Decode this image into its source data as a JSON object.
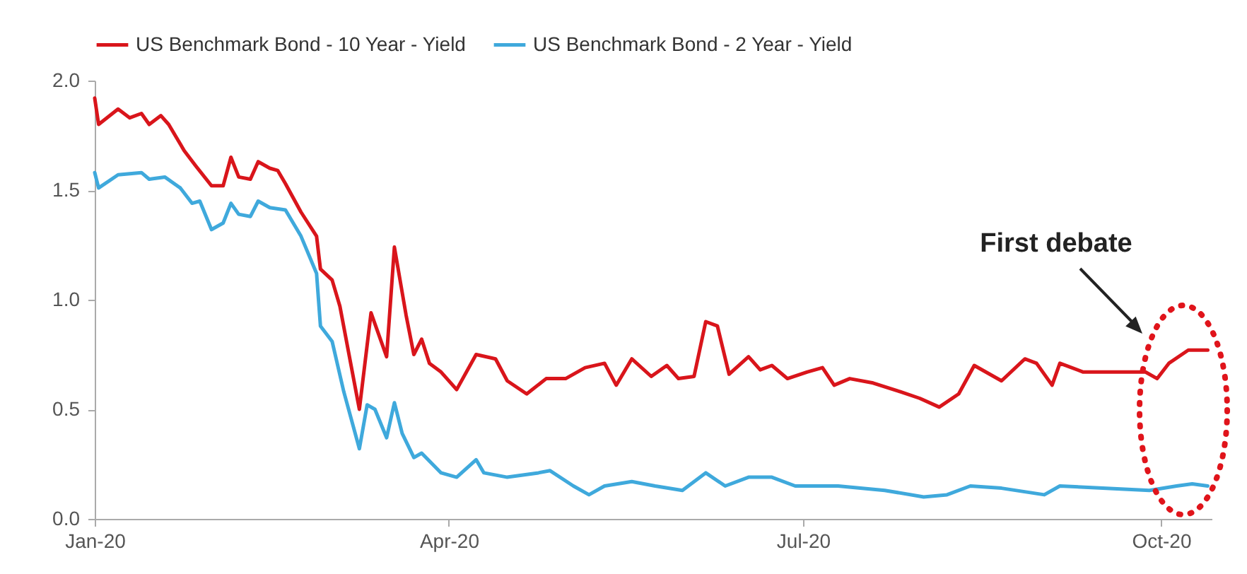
{
  "chart_data": {
    "type": "line",
    "xlim": [
      "2020-01-01",
      "2020-10-14"
    ],
    "xticks": [
      {
        "value": "2020-01-01",
        "label": "Jan-20"
      },
      {
        "value": "2020-04-01",
        "label": "Apr-20"
      },
      {
        "value": "2020-07-01",
        "label": "Jul-20"
      },
      {
        "value": "2020-10-01",
        "label": "Oct-20"
      }
    ],
    "ylim": [
      0,
      2
    ],
    "yticks": [
      {
        "value": 0,
        "label": "0.0"
      },
      {
        "value": 0.5,
        "label": "0.5"
      },
      {
        "value": 1,
        "label": "1.0"
      },
      {
        "value": 1.5,
        "label": "1.5"
      },
      {
        "value": 2,
        "label": "2.0"
      }
    ],
    "legend": "top",
    "annotations": [
      "First debate"
    ],
    "series": [
      {
        "name": "US Benchmark Bond - 10 Year - Yield",
        "color": "#d9151b",
        "x": [
          "2020-01-01",
          "2020-01-02",
          "2020-01-07",
          "2020-01-10",
          "2020-01-13",
          "2020-01-15",
          "2020-01-18",
          "2020-01-20",
          "2020-01-24",
          "2020-01-27",
          "2020-01-31",
          "2020-02-03",
          "2020-02-05",
          "2020-02-07",
          "2020-02-10",
          "2020-02-12",
          "2020-02-15",
          "2020-02-17",
          "2020-02-19",
          "2020-02-23",
          "2020-02-27",
          "2020-02-28",
          "2020-03-02",
          "2020-03-04",
          "2020-03-09",
          "2020-03-12",
          "2020-03-16",
          "2020-03-18",
          "2020-03-21",
          "2020-03-23",
          "2020-03-25",
          "2020-03-27",
          "2020-03-30",
          "2020-04-03",
          "2020-04-08",
          "2020-04-13",
          "2020-04-16",
          "2020-04-21",
          "2020-04-26",
          "2020-05-01",
          "2020-05-06",
          "2020-05-11",
          "2020-05-14",
          "2020-05-18",
          "2020-05-23",
          "2020-05-27",
          "2020-05-30",
          "2020-06-03",
          "2020-06-06",
          "2020-06-09",
          "2020-06-12",
          "2020-06-17",
          "2020-06-20",
          "2020-06-23",
          "2020-06-27",
          "2020-07-02",
          "2020-07-06",
          "2020-07-09",
          "2020-07-13",
          "2020-07-19",
          "2020-07-26",
          "2020-07-31",
          "2020-08-05",
          "2020-08-10",
          "2020-08-14",
          "2020-08-21",
          "2020-08-27",
          "2020-08-30",
          "2020-09-03",
          "2020-09-05",
          "2020-09-11",
          "2020-09-21",
          "2020-09-27",
          "2020-09-30",
          "2020-10-03",
          "2020-10-08",
          "2020-10-13"
        ],
        "values": [
          1.92,
          1.8,
          1.87,
          1.83,
          1.85,
          1.8,
          1.84,
          1.8,
          1.68,
          1.61,
          1.52,
          1.52,
          1.65,
          1.56,
          1.55,
          1.63,
          1.6,
          1.59,
          1.53,
          1.4,
          1.29,
          1.14,
          1.09,
          0.97,
          0.5,
          0.94,
          0.74,
          1.24,
          0.93,
          0.75,
          0.82,
          0.71,
          0.67,
          0.59,
          0.75,
          0.73,
          0.63,
          0.57,
          0.64,
          0.64,
          0.69,
          0.71,
          0.61,
          0.73,
          0.65,
          0.7,
          0.64,
          0.65,
          0.9,
          0.88,
          0.66,
          0.74,
          0.68,
          0.7,
          0.64,
          0.67,
          0.69,
          0.61,
          0.64,
          0.62,
          0.58,
          0.55,
          0.51,
          0.57,
          0.7,
          0.63,
          0.73,
          0.71,
          0.61,
          0.71,
          0.67,
          0.67,
          0.67,
          0.64,
          0.71,
          0.77,
          0.77
        ]
      },
      {
        "name": "US Benchmark Bond - 2 Year - Yield",
        "color": "#3fa9dc",
        "x": [
          "2020-01-01",
          "2020-01-02",
          "2020-01-07",
          "2020-01-13",
          "2020-01-15",
          "2020-01-19",
          "2020-01-23",
          "2020-01-26",
          "2020-01-28",
          "2020-01-31",
          "2020-02-03",
          "2020-02-05",
          "2020-02-07",
          "2020-02-10",
          "2020-02-12",
          "2020-02-15",
          "2020-02-19",
          "2020-02-23",
          "2020-02-27",
          "2020-02-28",
          "2020-03-02",
          "2020-03-05",
          "2020-03-09",
          "2020-03-11",
          "2020-03-13",
          "2020-03-16",
          "2020-03-18",
          "2020-03-20",
          "2020-03-23",
          "2020-03-25",
          "2020-03-30",
          "2020-04-03",
          "2020-04-08",
          "2020-04-10",
          "2020-04-16",
          "2020-04-24",
          "2020-04-27",
          "2020-05-03",
          "2020-05-07",
          "2020-05-11",
          "2020-05-18",
          "2020-05-24",
          "2020-05-31",
          "2020-06-06",
          "2020-06-11",
          "2020-06-17",
          "2020-06-23",
          "2020-06-29",
          "2020-07-06",
          "2020-07-10",
          "2020-07-22",
          "2020-08-01",
          "2020-08-07",
          "2020-08-13",
          "2020-08-21",
          "2020-09-01",
          "2020-09-05",
          "2020-09-16",
          "2020-09-28",
          "2020-10-05",
          "2020-10-09",
          "2020-10-13"
        ],
        "values": [
          1.58,
          1.51,
          1.57,
          1.58,
          1.55,
          1.56,
          1.51,
          1.44,
          1.45,
          1.32,
          1.35,
          1.44,
          1.39,
          1.38,
          1.45,
          1.42,
          1.41,
          1.29,
          1.12,
          0.88,
          0.81,
          0.58,
          0.32,
          0.52,
          0.5,
          0.37,
          0.53,
          0.39,
          0.28,
          0.3,
          0.21,
          0.19,
          0.27,
          0.21,
          0.19,
          0.21,
          0.22,
          0.15,
          0.11,
          0.15,
          0.17,
          0.15,
          0.13,
          0.21,
          0.15,
          0.19,
          0.19,
          0.15,
          0.15,
          0.15,
          0.13,
          0.1,
          0.11,
          0.15,
          0.14,
          0.11,
          0.15,
          0.14,
          0.13,
          0.15,
          0.16,
          0.15
        ]
      }
    ]
  }
}
